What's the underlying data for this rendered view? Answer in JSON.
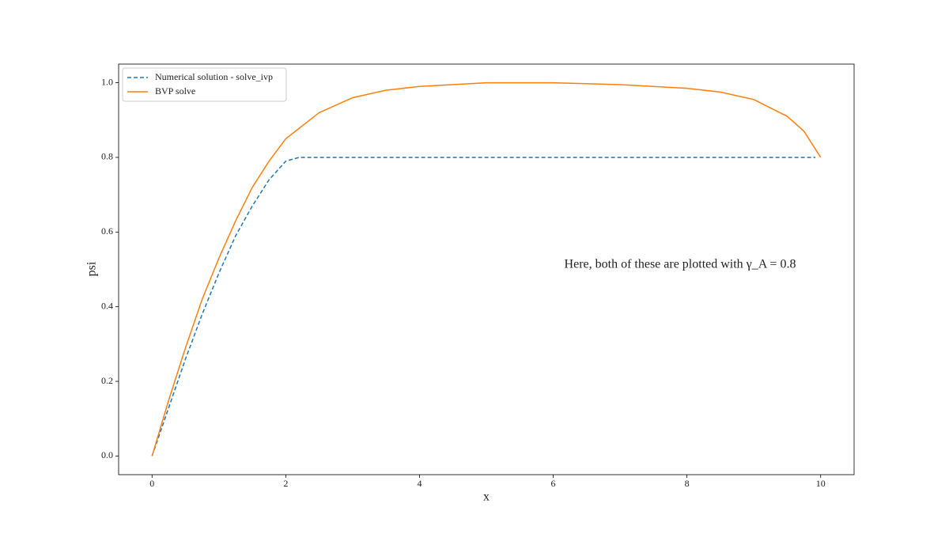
{
  "chart_data": {
    "type": "line",
    "xlabel": "x",
    "ylabel": "psi",
    "annotation": "Here, both of these are plotted with γ_A = 0.8",
    "xlim": [
      -0.5,
      10.5
    ],
    "ylim": [
      -0.05,
      1.05
    ],
    "xticks": [
      0,
      2,
      4,
      6,
      8,
      10
    ],
    "yticks": [
      {
        "value": 0,
        "label": "0.0"
      },
      {
        "value": 0.2,
        "label": "0.2"
      },
      {
        "value": 0.4,
        "label": "0.4"
      },
      {
        "value": 0.6,
        "label": "0.6"
      },
      {
        "value": 0.8,
        "label": "0.8"
      },
      {
        "value": 1,
        "label": "1.0"
      }
    ],
    "legend": "upper left",
    "series": [
      {
        "name": "Numerical solution - solve_ivp",
        "color": "#1f77b4",
        "dash": true,
        "x": [
          0,
          0.25,
          0.5,
          0.75,
          1,
          1.25,
          1.5,
          1.75,
          2,
          2.2,
          4,
          6,
          8,
          9.92
        ],
        "values": [
          0,
          0.13,
          0.26,
          0.38,
          0.49,
          0.59,
          0.67,
          0.74,
          0.79,
          0.8,
          0.8,
          0.8,
          0.8,
          0.8
        ]
      },
      {
        "name": "BVP solve",
        "color": "#ff7f0e",
        "dash": false,
        "x": [
          0,
          0.25,
          0.5,
          0.75,
          1,
          1.25,
          1.5,
          1.75,
          2,
          2.5,
          3,
          3.5,
          4,
          5,
          6,
          7,
          8,
          8.5,
          9,
          9.5,
          9.75,
          10
        ],
        "values": [
          0,
          0.15,
          0.29,
          0.42,
          0.53,
          0.63,
          0.72,
          0.79,
          0.85,
          0.92,
          0.96,
          0.98,
          0.99,
          1.0,
          1.0,
          0.995,
          0.985,
          0.975,
          0.955,
          0.91,
          0.87,
          0.8
        ]
      }
    ]
  }
}
